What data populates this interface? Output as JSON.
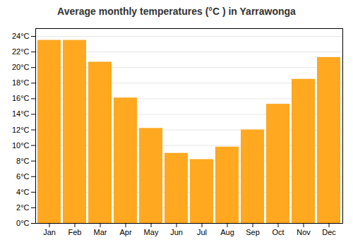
{
  "chart_data": {
    "type": "bar",
    "title": "Average monthly temperatures (°C ) in Yarrawonga",
    "categories": [
      "Jan",
      "Feb",
      "Mar",
      "Apr",
      "May",
      "Jun",
      "Jul",
      "Aug",
      "Sep",
      "Oct",
      "Nov",
      "Dec"
    ],
    "values": [
      23.5,
      23.5,
      20.7,
      16.1,
      12.2,
      9.0,
      8.2,
      9.8,
      12.0,
      15.3,
      18.5,
      21.3
    ],
    "color": "#FFA820",
    "ylim": [
      0,
      25
    ],
    "yticks": [
      {
        "value": 0,
        "label": "0°C"
      },
      {
        "value": 2,
        "label": "2°C"
      },
      {
        "value": 4,
        "label": "4°C"
      },
      {
        "value": 6,
        "label": "6°C"
      },
      {
        "value": 8,
        "label": "8°C"
      },
      {
        "value": 10,
        "label": "10°C"
      },
      {
        "value": 12,
        "label": "12°C"
      },
      {
        "value": 14,
        "label": "14°C"
      },
      {
        "value": 16,
        "label": "16°C"
      },
      {
        "value": 18,
        "label": "18°C"
      },
      {
        "value": 20,
        "label": "20°C"
      },
      {
        "value": 22,
        "label": "22°C"
      },
      {
        "value": 24,
        "label": "24°C"
      }
    ],
    "grid": true
  }
}
